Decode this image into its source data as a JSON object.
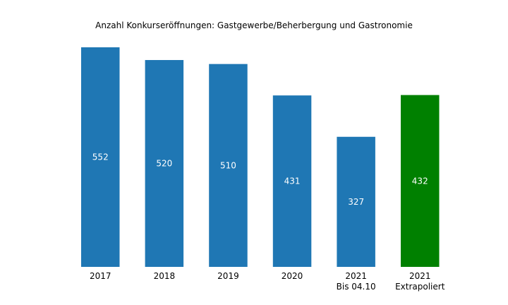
{
  "chart_data": {
    "type": "bar",
    "title": "Anzahl Konkurseröffnungen: Gastgewerbe/Beherbergung und Gastronomie",
    "categories": [
      [
        "2017"
      ],
      [
        "2018"
      ],
      [
        "2019"
      ],
      [
        "2020"
      ],
      [
        "2021",
        "Bis 04.10"
      ],
      [
        "2021",
        "Extrapoliert"
      ]
    ],
    "values": [
      552,
      520,
      510,
      431,
      327,
      432
    ],
    "data_labels": [
      "552",
      "520",
      "510",
      "431",
      "327",
      "432"
    ],
    "colors": [
      "#1f77b4",
      "#1f77b4",
      "#1f77b4",
      "#1f77b4",
      "#1f77b4",
      "#008000"
    ],
    "ylim": [
      0,
      552
    ],
    "grid": false,
    "yaxis_visible": false,
    "xlabel": "",
    "ylabel": ""
  }
}
